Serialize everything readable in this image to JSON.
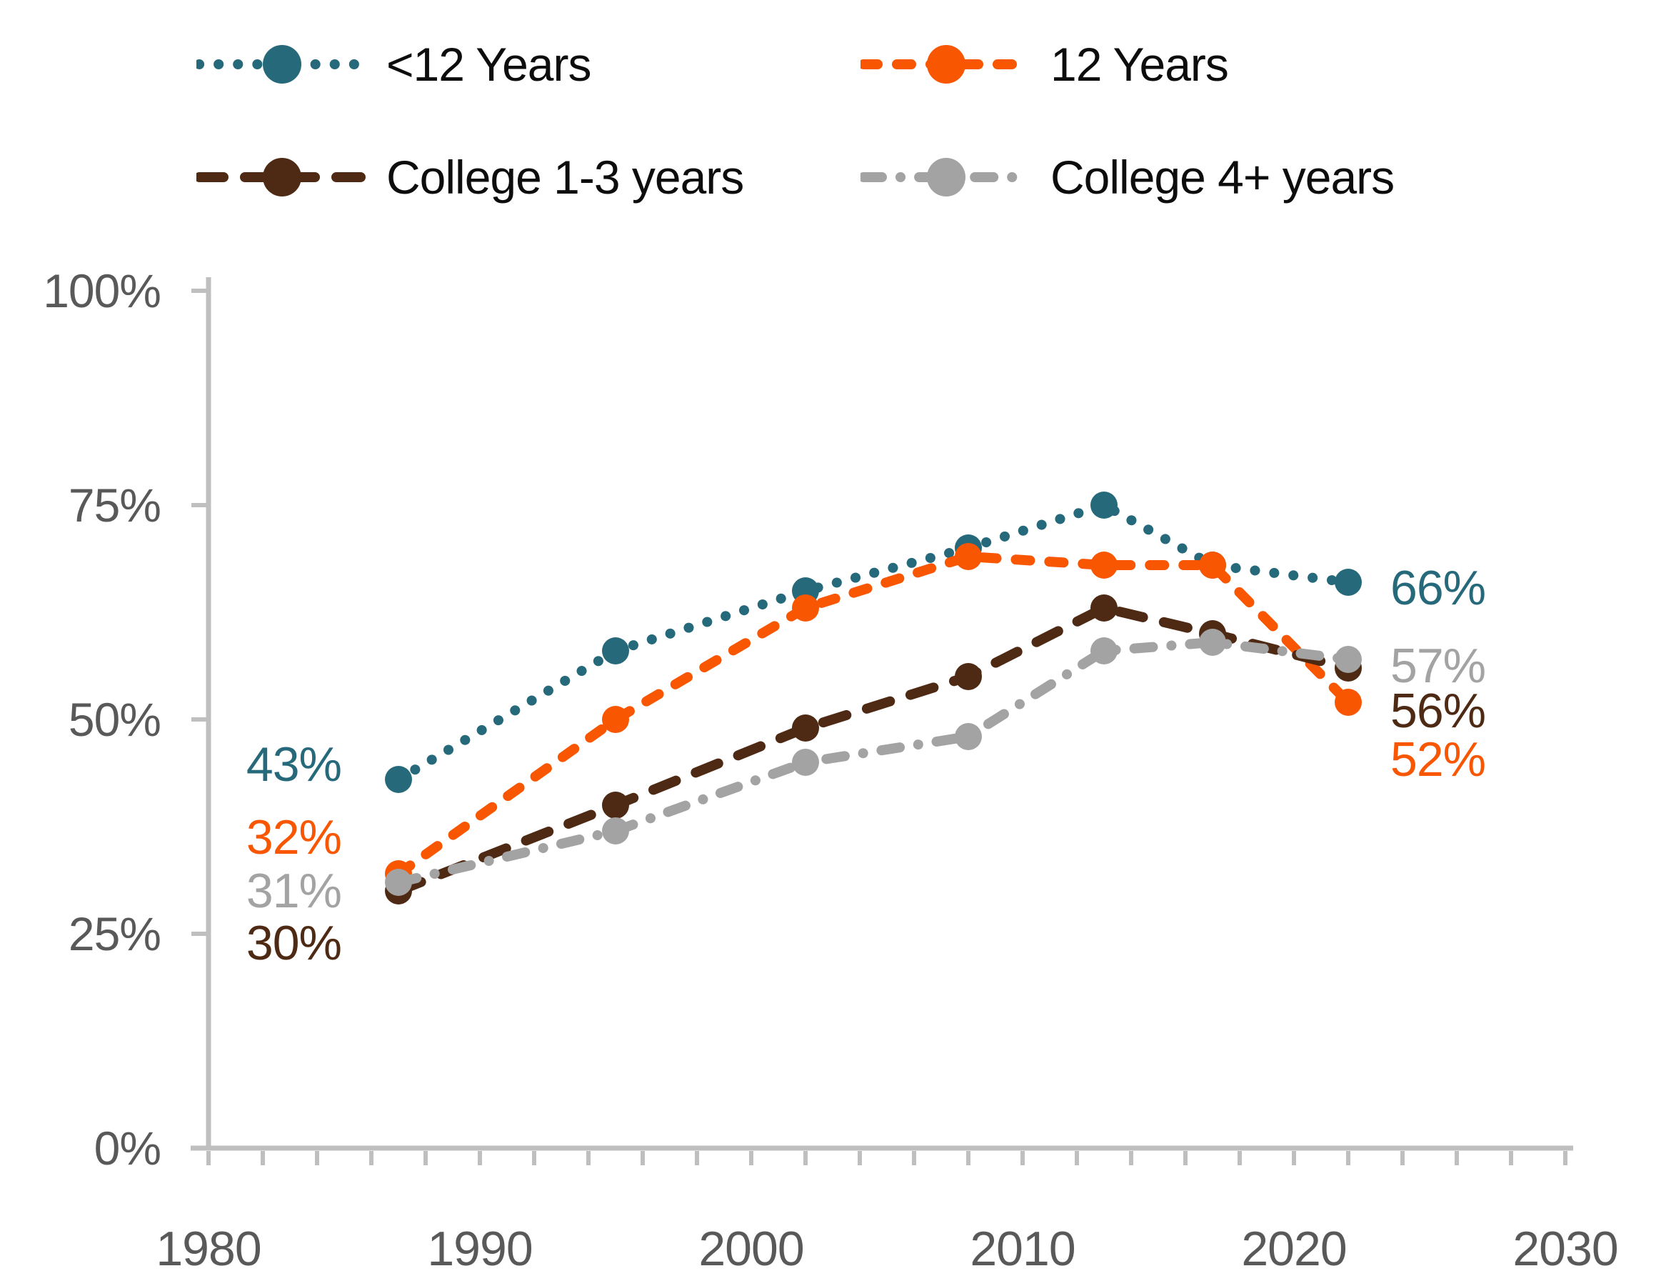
{
  "chart_data": {
    "type": "line",
    "x": [
      1987,
      1995,
      2002,
      2008,
      2013,
      2017,
      2022
    ],
    "series": [
      {
        "name": "<12 Years",
        "color": "#26697A",
        "dash": "dotted",
        "values": [
          43,
          58,
          65,
          70,
          75,
          68,
          66
        ],
        "start_label": "43%",
        "end_label": "66%"
      },
      {
        "name": "12 Years",
        "color": "#F95602",
        "dash": "dashed",
        "values": [
          32,
          50,
          63,
          69,
          68,
          68,
          52
        ],
        "start_label": "32%",
        "end_label": "52%"
      },
      {
        "name": "College 1-3 years",
        "color": "#4E2A14",
        "dash": "long-dash",
        "values": [
          30,
          40,
          49,
          55,
          63,
          60,
          56
        ],
        "start_label": "30%",
        "end_label": "56%"
      },
      {
        "name": "College 4+ years",
        "color": "#A3A3A3",
        "dash": "dash-dot",
        "values": [
          31,
          37,
          45,
          48,
          58,
          59,
          57
        ],
        "start_label": "31%",
        "end_label": "57%"
      }
    ],
    "title": "",
    "xlabel": "",
    "ylabel": "",
    "xlim": [
      1980,
      2030
    ],
    "ylim": [
      0,
      100
    ],
    "x_ticks": [
      1980,
      1990,
      2000,
      2010,
      2020,
      2030
    ],
    "x_minor_tick_step": 2,
    "y_ticks": [
      "0%",
      "25%",
      "50%",
      "75%",
      "100%"
    ],
    "y_tick_values": [
      0,
      25,
      50,
      75,
      100
    ],
    "grid": "off",
    "legend_position": "top",
    "axis_color": "#BFBFBF",
    "tick_text_color": "#595959"
  }
}
